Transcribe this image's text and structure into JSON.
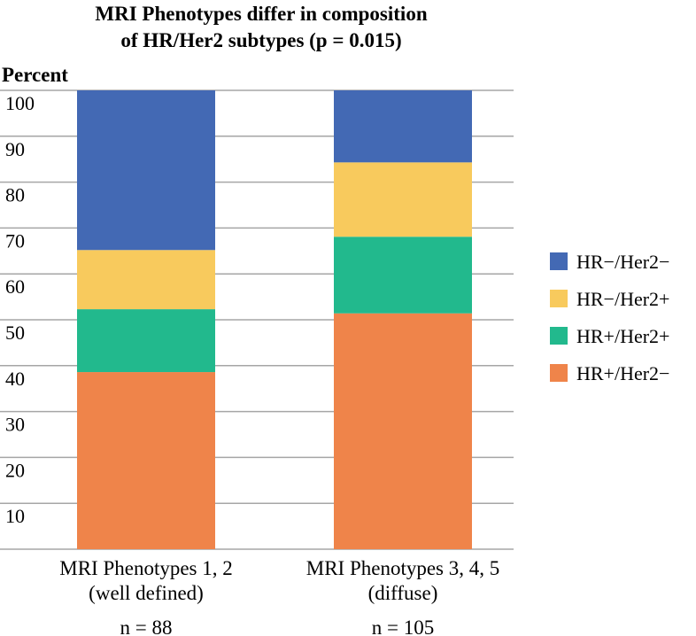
{
  "chart_data": {
    "type": "bar",
    "stacked": true,
    "title": [
      "MRI Phenotypes differ in composition",
      "of HR/Her2 subtypes (p = 0.015)"
    ],
    "ylabel": "Percent",
    "ylim": [
      0,
      100
    ],
    "yticks": [
      "10",
      "20",
      "30",
      "40",
      "50",
      "60",
      "70",
      "80",
      "90",
      "100"
    ],
    "grid": true,
    "legend_position": "right",
    "categories": [
      {
        "line1": "MRI Phenotypes 1, 2",
        "line2": "(well defined)",
        "n": "n = 88"
      },
      {
        "line1": "MRI Phenotypes 3, 4, 5",
        "line2": "(diffuse)",
        "n": "n = 105"
      }
    ],
    "series": [
      {
        "name": "HR+/Her2−",
        "color": "#ef844a",
        "values": [
          38.6,
          51.4
        ]
      },
      {
        "name": "HR+/Her2+",
        "color": "#22b98d",
        "values": [
          13.7,
          16.7
        ]
      },
      {
        "name": "HR−/Her2+",
        "color": "#f8ca5d",
        "values": [
          12.9,
          16.2
        ]
      },
      {
        "name": "HR−/Her2−",
        "color": "#4369b4",
        "values": [
          34.8,
          15.7
        ]
      }
    ],
    "legend_order": [
      "HR−/Her2−",
      "HR−/Her2+",
      "HR+/Her2+",
      "HR+/Her2−"
    ]
  }
}
